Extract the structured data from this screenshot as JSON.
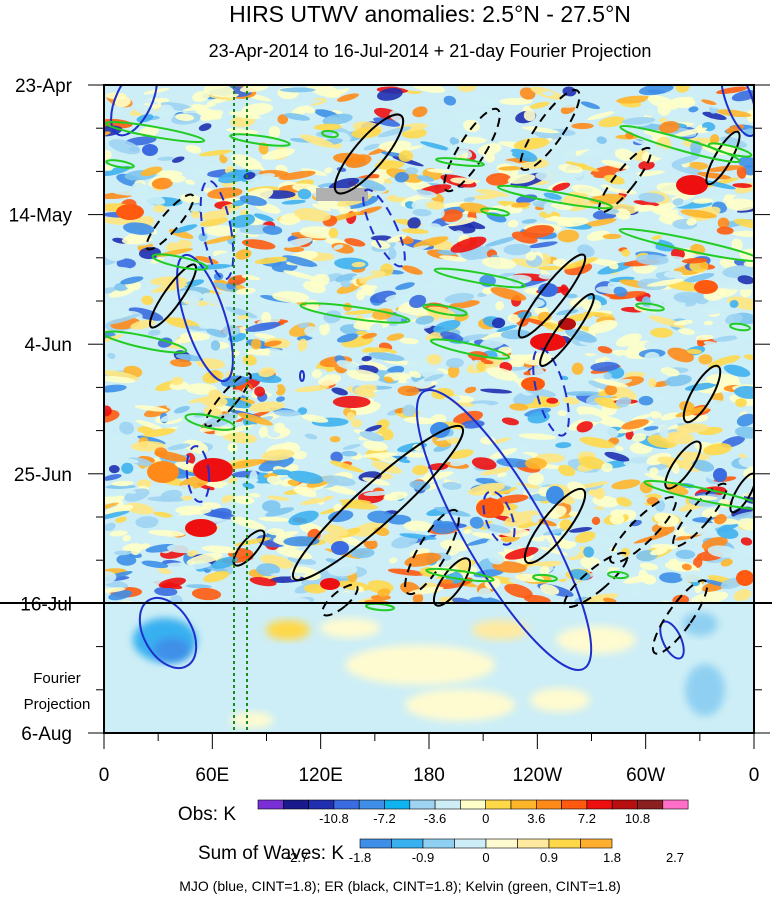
{
  "chart_data": {
    "type": "heatmap",
    "title": "HIRS UTWV anomalies: 2.5°N - 27.5°N",
    "subtitle": "23-Apr-2014 to 16-Jul-2014 + 21-day Fourier Projection",
    "y_labels": [
      "23-Apr",
      "14-May",
      "4-Jun",
      "25-Jun",
      "16-Jul",
      "6-Aug"
    ],
    "x_labels": [
      "0",
      "60E",
      "120E",
      "180",
      "120W",
      "60W",
      "0"
    ],
    "x_range_deg_east": [
      0,
      360
    ],
    "y_range_days": [
      0,
      105
    ],
    "observation_end_day": 84,
    "projection_label": "Fourier Projection",
    "obs_colorbar": {
      "label": "Obs: K",
      "levels": [
        "-10.8",
        "-7.2",
        "-3.6",
        "0",
        "3.6",
        "7.2",
        "10.8"
      ],
      "colors": [
        "#7a2fd6",
        "#1a1a8c",
        "#1f2fb0",
        "#3a6be0",
        "#3f8fe8",
        "#0fb3f0",
        "#9fd3f2",
        "#cdeef6",
        "#ffffc8",
        "#ffd84a",
        "#ffb52a",
        "#ff8a1a",
        "#ff5a10",
        "#ee1010",
        "#b81010",
        "#8a2020",
        "#ff6ec7"
      ]
    },
    "waves_colorbar": {
      "label": "Sum of Waves: K",
      "levels": [
        "-2.7",
        "-1.8",
        "-0.9",
        "0",
        "0.9",
        "1.8",
        "2.7"
      ],
      "colors": [
        "#3f8fe8",
        "#38b0f0",
        "#8fd0f2",
        "#cdeef6",
        "#fffbd0",
        "#ffeaa0",
        "#ffd84a",
        "#ffae30"
      ]
    },
    "contours": [
      {
        "wave": "MJO",
        "color": "#1f2fcc",
        "cint": 1.8
      },
      {
        "wave": "ER",
        "color": "#000000",
        "cint": 1.8
      },
      {
        "wave": "Kelvin",
        "color": "#22cc22",
        "cint": 1.8
      }
    ],
    "reference_lines_deg_east": [
      74,
      80
    ],
    "footer": "MJO (blue, CINT=1.8); ER (black, CINT=1.8); Kelvin (green, CINT=1.8)"
  }
}
